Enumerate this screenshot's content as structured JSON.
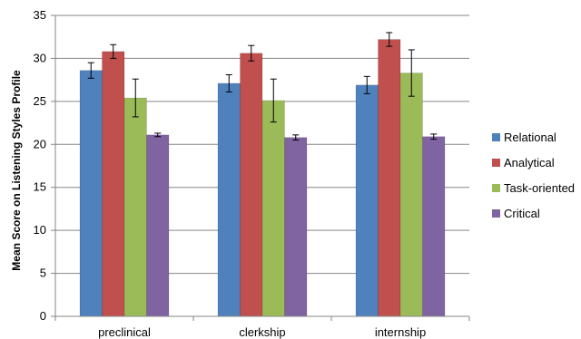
{
  "chart_data": {
    "type": "bar",
    "title": "",
    "xlabel": "",
    "ylabel": "Mean Score on Listening Styles Profile",
    "ylim": [
      0,
      35
    ],
    "yticks": [
      0,
      5,
      10,
      15,
      20,
      25,
      30,
      35
    ],
    "grid": "horizontal",
    "legend_position": "right",
    "categories": [
      "preclinical",
      "clerkship",
      "internship"
    ],
    "series": [
      {
        "name": "Relational",
        "color": "#4F81BD",
        "values": [
          28.6,
          27.1,
          26.9
        ],
        "error": [
          0.9,
          1.0,
          1.0
        ]
      },
      {
        "name": "Analytical",
        "color": "#C0504D",
        "values": [
          30.8,
          30.6,
          32.2
        ],
        "error": [
          0.8,
          0.9,
          0.8
        ]
      },
      {
        "name": "Task-oriented",
        "color": "#9BBB59",
        "values": [
          25.4,
          25.1,
          28.3
        ],
        "error": [
          2.2,
          2.5,
          2.7
        ]
      },
      {
        "name": "Critical",
        "color": "#8064A2",
        "values": [
          21.1,
          20.8,
          20.9
        ],
        "error": [
          0.2,
          0.3,
          0.3
        ]
      }
    ]
  }
}
